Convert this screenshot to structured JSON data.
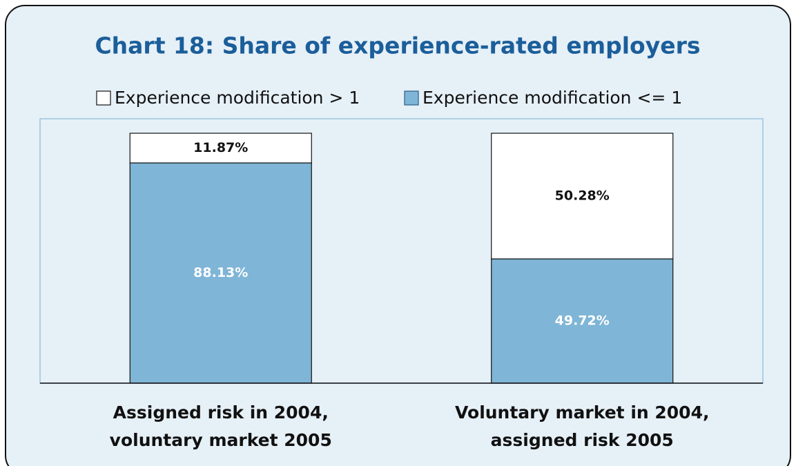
{
  "chart_data": {
    "type": "stacked_bar",
    "title": "Chart 18: Share of experience-rated employers",
    "categories": [
      "Assigned risk in 2004,\nvoluntary market 2005",
      "Voluntary market in 2004,\nassigned risk 2005"
    ],
    "series": [
      {
        "name": "Experience modification > 1",
        "color": "#ffffff",
        "values": [
          11.87,
          50.28
        ],
        "value_labels": [
          "11.87%",
          "50.28%"
        ]
      },
      {
        "name": "Experience modification <= 1",
        "color": "#7fb5d6",
        "values": [
          88.13,
          49.72
        ],
        "value_labels": [
          "88.13%",
          "49.72%"
        ]
      }
    ],
    "ylim": [
      0,
      100
    ]
  }
}
